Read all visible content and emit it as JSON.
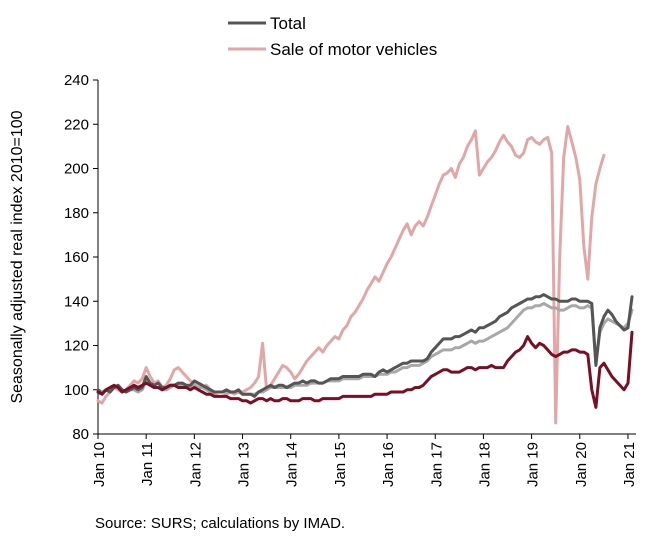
{
  "chart_data": {
    "type": "line",
    "title": "",
    "xlabel": "",
    "ylabel": "Seasonally adjusted real index 2010=100",
    "ylim": [
      80,
      240
    ],
    "yticks": [
      80,
      100,
      120,
      140,
      160,
      180,
      200,
      220,
      240
    ],
    "xticks": [
      "Jan 10",
      "Jan 11",
      "Jan 12",
      "Jan 13",
      "Jan 14",
      "Jan 15",
      "Jan 16",
      "Jan 17",
      "Jan 18",
      "Jan 19",
      "Jan 20",
      "Jan 21"
    ],
    "x_start": "Jan 10",
    "legend_position": "top-center",
    "grid": false,
    "series": [
      {
        "name": "Total",
        "color": "#555555",
        "in_legend": true,
        "values": [
          100,
          98,
          100,
          99,
          101,
          102,
          100,
          99,
          100,
          101,
          100,
          101,
          106,
          103,
          102,
          103,
          101,
          101,
          102,
          102,
          103,
          103,
          102,
          102,
          104,
          103,
          102,
          101,
          100,
          99,
          99,
          99,
          100,
          99,
          99,
          100,
          98,
          98,
          98,
          97,
          99,
          100,
          101,
          102,
          101,
          102,
          102,
          101,
          102,
          103,
          103,
          104,
          103,
          104,
          104,
          103,
          103,
          104,
          105,
          105,
          105,
          106,
          106,
          106,
          106,
          106,
          107,
          107,
          107,
          106,
          108,
          109,
          108,
          109,
          110,
          111,
          112,
          112,
          113,
          113,
          113,
          113,
          114,
          117,
          119,
          121,
          123,
          123,
          123,
          124,
          124,
          125,
          126,
          127,
          126,
          128,
          128,
          129,
          130,
          131,
          133,
          134,
          135,
          137,
          138,
          139,
          140,
          141,
          141,
          142,
          142,
          143,
          142,
          141,
          141,
          140,
          140,
          140,
          141,
          141,
          140,
          140,
          140,
          139,
          111,
          128,
          133,
          136,
          134,
          131,
          129,
          127,
          128,
          142
        ]
      },
      {
        "name": "Sale of motor vehicles",
        "color": "#E3A6A6",
        "in_legend": true,
        "values": [
          95,
          94,
          97,
          99,
          101,
          100,
          99,
          100,
          102,
          104,
          103,
          105,
          110,
          106,
          103,
          104,
          101,
          102,
          105,
          109,
          110,
          108,
          106,
          104,
          103,
          102,
          101,
          102,
          100,
          98,
          97,
          97,
          98,
          99,
          98,
          99,
          99,
          100,
          101,
          103,
          106,
          121,
          100,
          102,
          105,
          108,
          111,
          110,
          108,
          105,
          107,
          110,
          113,
          115,
          117,
          119,
          117,
          120,
          122,
          124,
          123,
          127,
          129,
          133,
          135,
          138,
          141,
          145,
          148,
          151,
          149,
          153,
          157,
          160,
          164,
          168,
          172,
          175,
          170,
          174,
          176,
          174,
          178,
          183,
          188,
          193,
          197,
          198,
          200,
          196,
          202,
          205,
          210,
          213,
          217,
          197,
          200,
          203,
          205,
          208,
          212,
          215,
          212,
          210,
          206,
          205,
          207,
          213,
          214,
          212,
          211,
          213,
          214,
          207,
          85,
          160,
          205,
          219,
          212,
          205,
          195,
          165,
          150,
          178,
          193,
          200,
          206
        ]
      },
      {
        "name": "",
        "color": "#A8A8A8",
        "in_legend": false,
        "values": [
          100,
          99,
          100,
          100,
          101,
          101,
          100,
          99,
          100,
          100,
          99,
          100,
          104,
          102,
          101,
          101,
          100,
          100,
          101,
          102,
          102,
          102,
          101,
          101,
          102,
          101,
          101,
          100,
          99,
          99,
          99,
          99,
          99,
          99,
          99,
          99,
          98,
          98,
          98,
          98,
          99,
          99,
          100,
          101,
          101,
          101,
          101,
          101,
          101,
          102,
          102,
          102,
          102,
          103,
          103,
          103,
          103,
          104,
          104,
          104,
          104,
          105,
          105,
          105,
          105,
          105,
          106,
          106,
          106,
          106,
          107,
          107,
          107,
          108,
          108,
          109,
          110,
          110,
          111,
          111,
          111,
          112,
          113,
          115,
          116,
          117,
          118,
          118,
          118,
          119,
          119,
          120,
          121,
          122,
          121,
          122,
          122,
          123,
          124,
          125,
          126,
          127,
          128,
          130,
          132,
          134,
          136,
          137,
          137,
          138,
          138,
          139,
          138,
          137,
          137,
          136,
          136,
          137,
          138,
          138,
          137,
          137,
          138,
          137,
          112,
          126,
          130,
          132,
          131,
          130,
          129,
          128,
          130,
          136
        ]
      },
      {
        "name": "",
        "color": "#7A0F24",
        "in_legend": false,
        "values": [
          99,
          98,
          100,
          101,
          102,
          101,
          99,
          100,
          101,
          102,
          101,
          102,
          103,
          102,
          101,
          101,
          100,
          101,
          102,
          102,
          101,
          101,
          101,
          100,
          101,
          100,
          99,
          98,
          98,
          97,
          97,
          97,
          97,
          96,
          96,
          96,
          95,
          95,
          94,
          95,
          96,
          96,
          95,
          96,
          95,
          95,
          96,
          96,
          95,
          95,
          95,
          96,
          96,
          96,
          95,
          95,
          96,
          96,
          96,
          96,
          96,
          97,
          97,
          97,
          97,
          97,
          97,
          97,
          97,
          98,
          98,
          98,
          98,
          99,
          99,
          99,
          99,
          100,
          100,
          101,
          101,
          102,
          104,
          106,
          107,
          108,
          109,
          109,
          108,
          108,
          108,
          109,
          110,
          110,
          109,
          110,
          110,
          110,
          111,
          110,
          110,
          110,
          113,
          115,
          117,
          118,
          120,
          124,
          121,
          119,
          121,
          120,
          118,
          116,
          115,
          116,
          117,
          117,
          118,
          118,
          117,
          117,
          116,
          100,
          92,
          110,
          112,
          109,
          106,
          104,
          102,
          100,
          103,
          126
        ]
      }
    ]
  },
  "source": "Source: SURS; calculations by IMAD."
}
